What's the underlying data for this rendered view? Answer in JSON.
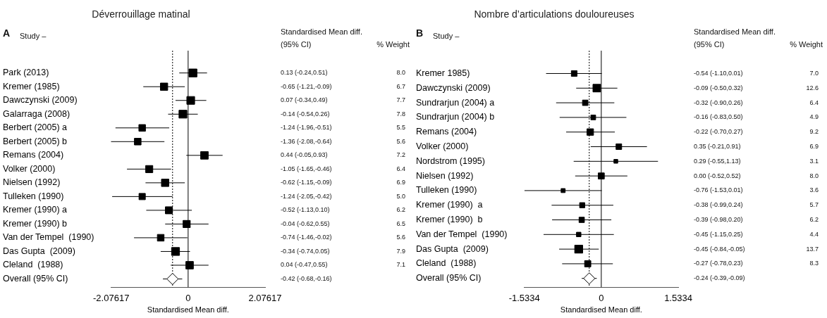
{
  "chart_data": [
    {
      "type": "bubble",
      "title": "Déverrouillage matinal",
      "orientation": "horizontal",
      "xlabel": "Standardised Mean diff.",
      "grid": false,
      "legend": false,
      "annotations": [
        "A",
        "Study –",
        "Standardised Mean diff.",
        "(95% CI)",
        "% Weight",
        "8.0",
        "6.7",
        "7.7",
        "7.8",
        "5.5",
        "5.6",
        "7.2",
        "6.4",
        "6.9",
        "5.0",
        "6.2",
        "6.5",
        "5.6",
        "7.9",
        "7.1",
        "-0.42 (-0.68,-0.16)"
      ],
      "categories": [
        "Park (2013)",
        "Kremer (1985)",
        "Dawczynski (2009)",
        "Galarraga (2008)",
        "Berbert (2005) a",
        "Berbert (2005) b",
        "Remans (2004)",
        "Volker (2000)",
        "Nielsen (1992)",
        "Tulleken (1990)",
        "Kremer (1990) a",
        "Kremer (1990) b",
        "Van der Tempel  (1990)",
        "Das Gupta  (2009)",
        "Cleland  (1988)",
        "Overall (95% CI)"
      ],
      "xlim": [
        -2.07617,
        2.07617
      ],
      "xticks": [
        -2.07617,
        0,
        2.07617
      ],
      "ref_lines": [
        {
          "axis": "x",
          "value": 0,
          "line_style": "solid",
          "color": "#000000"
        },
        {
          "axis": "x",
          "value": -0.42,
          "line_style": "dotted",
          "color": "#000000"
        }
      ],
      "series": [
        {
          "type": "bubble",
          "marker": "square",
          "color": "#000000",
          "values": [
            0.13,
            -0.65,
            0.07,
            -0.14,
            -1.24,
            -1.36,
            0.44,
            -1.05,
            -0.62,
            -1.24,
            -0.52,
            -0.04,
            -0.74,
            -0.34,
            0.04,
            null
          ],
          "errors": [
            [
              -0.24,
              0.51
            ],
            [
              -1.21,
              -0.09
            ],
            [
              -0.34,
              0.49
            ],
            [
              -0.54,
              0.26
            ],
            [
              -1.96,
              -0.51
            ],
            [
              -2.08,
              -0.64
            ],
            [
              -0.05,
              0.93
            ],
            [
              -1.65,
              -0.46
            ],
            [
              -1.15,
              -0.09
            ],
            [
              -2.05,
              -0.42
            ],
            [
              -1.13,
              0.1
            ],
            [
              -0.62,
              0.55
            ],
            [
              -1.46,
              -0.02
            ],
            [
              -0.74,
              0.05
            ],
            [
              -0.47,
              0.55
            ],
            null
          ],
          "sizes": [
            1,
            0.84,
            0.96,
            0.98,
            0.69,
            0.7,
            0.9,
            0.8,
            0.86,
            0.63,
            0.78,
            0.81,
            0.7,
            0.99,
            0.89,
            null
          ],
          "value_labels": [
            "0.13 (-0.24,0.51)",
            "-0.65 (-1.21,-0.09)",
            "0.07 (-0.34,0.49)",
            "-0.14 (-0.54,0.26)",
            "-1.24 (-1.96,-0.51)",
            "-1.36 (-2.08,-0.64)",
            "0.44 (-0.05,0.93)",
            "-1.05 (-1.65,-0.46)",
            "-0.62 (-1.15,-0.09)",
            "-1.24 (-2.05,-0.42)",
            "-0.52 (-1.13,0.10)",
            "-0.04 (-0.62,0.55)",
            "-0.74 (-1.46,-0.02)",
            "-0.34 (-0.74,0.05)",
            "0.04 (-0.47,0.55)",
            null
          ]
        },
        {
          "type": "scatter",
          "marker": "diamond",
          "color": "#000000",
          "values": [
            null,
            null,
            null,
            null,
            null,
            null,
            null,
            null,
            null,
            null,
            null,
            null,
            null,
            null,
            null,
            -0.42
          ],
          "errors": [
            null,
            null,
            null,
            null,
            null,
            null,
            null,
            null,
            null,
            null,
            null,
            null,
            null,
            null,
            null,
            [
              -0.68,
              -0.16
            ]
          ]
        }
      ]
    },
    {
      "type": "bubble",
      "title": "Nombre d’articulations douloureuses",
      "orientation": "horizontal",
      "xlabel": "Standardised Mean diff.",
      "grid": false,
      "legend": false,
      "annotations": [
        "B",
        "Study –",
        "Standardised Mean diff.",
        "(95% CI)",
        "% Weight",
        "7.0",
        "12.6",
        "6.4",
        "4.9",
        "9.2",
        "6.9",
        "3.1",
        "8.0",
        "3.6",
        "5.7",
        "6.2",
        "4.4",
        "13.7",
        "8.3",
        "-0.24 (-0.39,-0.09)"
      ],
      "categories": [
        "Kremer 1985)",
        "Dawczynski (2009)",
        "Sundrarjun (2004) a",
        "Sundrarjun (2004) b",
        "Remans (2004)",
        "Volker (2000)",
        "Nordstrom (1995)",
        "Nielsen (1992)",
        "Tulleken (1990)",
        "Kremer (1990)  a",
        "Kremer (1990)  b",
        "Van der Tempel  (1990)",
        "Das Gupta  (2009)",
        "Cleland  (1988)",
        "Overall (95% CI)"
      ],
      "xlim": [
        -1.5334,
        1.5334
      ],
      "xticks": [
        -1.5334,
        0,
        1.5334
      ],
      "ref_lines": [
        {
          "axis": "x",
          "value": 0,
          "line_style": "solid",
          "color": "#000000"
        },
        {
          "axis": "x",
          "value": -0.24,
          "line_style": "dotted",
          "color": "#000000"
        }
      ],
      "series": [
        {
          "type": "bubble",
          "marker": "square",
          "color": "#000000",
          "values": [
            -0.54,
            -0.09,
            -0.32,
            -0.16,
            -0.22,
            0.35,
            0.29,
            0.0,
            -0.76,
            -0.38,
            -0.39,
            -0.45,
            -0.45,
            -0.27,
            null
          ],
          "errors": [
            [
              -1.1,
              0.01
            ],
            [
              -0.5,
              0.32
            ],
            [
              -0.9,
              0.26
            ],
            [
              -0.83,
              0.5
            ],
            [
              -0.7,
              0.27
            ],
            [
              -0.21,
              0.91
            ],
            [
              -0.55,
              1.13
            ],
            [
              -0.52,
              0.52
            ],
            [
              -1.53,
              0.01
            ],
            [
              -0.99,
              0.24
            ],
            [
              -0.98,
              0.2
            ],
            [
              -1.15,
              0.25
            ],
            [
              -0.84,
              -0.05
            ],
            [
              -0.78,
              0.23
            ],
            null
          ],
          "sizes": [
            0.51,
            0.92,
            0.47,
            0.36,
            0.67,
            0.5,
            0.23,
            0.58,
            0.26,
            0.42,
            0.45,
            0.32,
            1,
            0.61,
            null
          ],
          "value_labels": [
            "-0.54 (-1.10,0.01)",
            "-0.09 (-0.50,0.32)",
            "-0.32 (-0.90,0.26)",
            "-0.16 (-0.83,0.50)",
            "-0.22 (-0.70,0.27)",
            "0.35 (-0.21,0.91)",
            "0.29 (-0.55,1.13)",
            "0.00 (-0.52,0.52)",
            "-0.76 (-1.53,0.01)",
            "-0.38 (-0.99,0.24)",
            "-0.39 (-0.98,0.20)",
            "-0.45 (-1.15,0.25)",
            "-0.45 (-0.84,-0.05)",
            "-0.27 (-0.78,0.23)",
            null
          ]
        },
        {
          "type": "scatter",
          "marker": "diamond",
          "color": "#000000",
          "values": [
            null,
            null,
            null,
            null,
            null,
            null,
            null,
            null,
            null,
            null,
            null,
            null,
            null,
            null,
            -0.24
          ],
          "errors": [
            null,
            null,
            null,
            null,
            null,
            null,
            null,
            null,
            null,
            null,
            null,
            null,
            null,
            null,
            [
              -0.39,
              -0.09
            ]
          ]
        }
      ]
    }
  ]
}
